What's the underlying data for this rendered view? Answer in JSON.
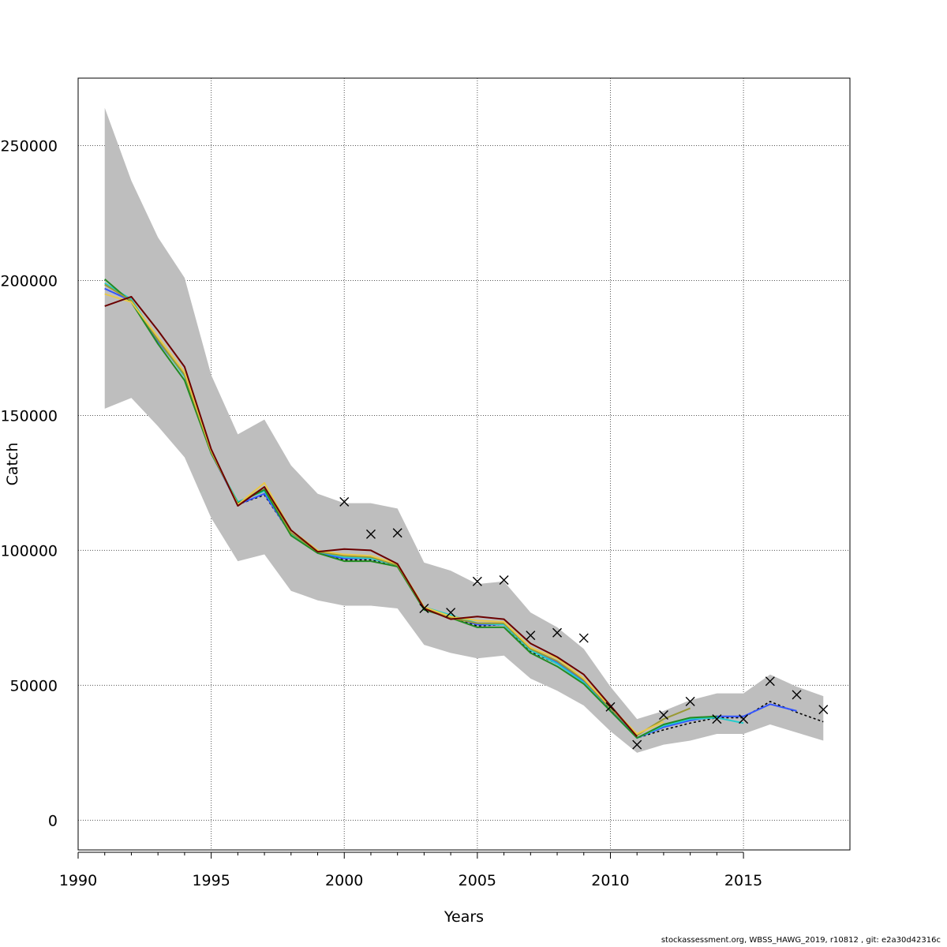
{
  "chart_data": {
    "type": "line",
    "xlabel": "Years",
    "ylabel": "Catch",
    "xlim": [
      1990,
      2019
    ],
    "ylim": [
      -11000,
      275000
    ],
    "x_ticks": [
      1990,
      1995,
      2000,
      2005,
      2010,
      2015
    ],
    "y_ticks": [
      0,
      50000,
      100000,
      150000,
      200000,
      250000
    ],
    "y_tick_labels": [
      "0",
      "50000",
      "100000",
      "150000",
      "200000",
      "250000"
    ],
    "grid": true,
    "confidence_band": {
      "color": "#bebebe",
      "x": [
        1991,
        1992,
        1993,
        1994,
        1995,
        1996,
        1997,
        1998,
        1999,
        2000,
        2001,
        2002,
        2003,
        2004,
        2005,
        2006,
        2007,
        2008,
        2009,
        2010,
        2011,
        2012,
        2013,
        2014,
        2015,
        2016,
        2017,
        2018
      ],
      "upper": [
        264000,
        237000,
        216000,
        201000,
        165000,
        143000,
        148500,
        131500,
        121000,
        117500,
        117500,
        115500,
        95500,
        92500,
        87500,
        88500,
        77000,
        71500,
        63500,
        49500,
        37500,
        40500,
        44500,
        47000,
        47000,
        54000,
        49500,
        46000
      ],
      "lower": [
        152500,
        156500,
        146000,
        134500,
        112000,
        96000,
        98500,
        85000,
        81500,
        79500,
        79500,
        78500,
        65000,
        62000,
        60000,
        61000,
        52500,
        48000,
        42500,
        33000,
        25000,
        28000,
        29500,
        32000,
        32000,
        35500,
        32500,
        29500
      ]
    },
    "series": [
      {
        "color": "#000000",
        "dashed": true,
        "x": [
          1991,
          1992,
          1993,
          1994,
          1995,
          1996,
          1997,
          1998,
          1999,
          2000,
          2001,
          2002,
          2003,
          2004,
          2005,
          2006,
          2007,
          2008,
          2009,
          2010,
          2011,
          2012,
          2013,
          2014,
          2015,
          2016,
          2017,
          2018
        ],
        "values": [
          197000,
          192500,
          177500,
          165000,
          136000,
          117000,
          120500,
          106000,
          99000,
          96500,
          96500,
          94000,
          78000,
          75000,
          72000,
          72500,
          62500,
          58000,
          51000,
          41000,
          30500,
          33500,
          36000,
          38000,
          38000,
          44000,
          40000,
          36500
        ]
      },
      {
        "color": "#3355ff",
        "x": [
          1991,
          1992,
          1993,
          1994,
          1995,
          1996,
          1997,
          1998,
          1999,
          2000,
          2001,
          2002,
          2003,
          2004,
          2005,
          2006,
          2007,
          2008,
          2009,
          2010,
          2011,
          2012,
          2013,
          2014,
          2015,
          2016,
          2017
        ],
        "values": [
          197000,
          192500,
          177500,
          165000,
          136000,
          117000,
          121000,
          106000,
          99000,
          97000,
          97000,
          94500,
          78500,
          75500,
          72500,
          72500,
          63000,
          58500,
          51500,
          41500,
          30500,
          34500,
          37000,
          38500,
          38500,
          43000,
          40500
        ]
      },
      {
        "color": "#22cccc",
        "x": [
          1991,
          1992,
          1993,
          1994,
          1995,
          1996,
          1997,
          1998,
          1999,
          2000,
          2001,
          2002,
          2003,
          2004,
          2005,
          2006,
          2007,
          2008,
          2009,
          2010,
          2011,
          2012,
          2013,
          2014,
          2015
        ],
        "values": [
          199000,
          193000,
          178000,
          164500,
          136000,
          118000,
          122000,
          106000,
          99500,
          97500,
          97000,
          94500,
          79000,
          76000,
          73000,
          72500,
          63000,
          58000,
          51000,
          40500,
          30500,
          35000,
          37500,
          38000,
          36000
        ]
      },
      {
        "color": "#228b22",
        "x": [
          1991,
          1992,
          1993,
          1994,
          1995,
          1996,
          1997,
          1998,
          1999,
          2000,
          2001,
          2002,
          2003,
          2004,
          2005,
          2006,
          2007,
          2008,
          2009,
          2010,
          2011,
          2012,
          2013,
          2014
        ],
        "values": [
          200500,
          192000,
          176500,
          163000,
          136000,
          117500,
          122500,
          105500,
          99000,
          96000,
          96000,
          94000,
          78000,
          75000,
          71500,
          71500,
          62000,
          57000,
          50500,
          40500,
          30500,
          35500,
          38000,
          38500
        ]
      },
      {
        "color": "#999933",
        "x": [
          1991,
          1992,
          1993,
          1994,
          1995,
          1996,
          1997,
          1998,
          1999,
          2000,
          2001,
          2002,
          2003,
          2004,
          2005,
          2006,
          2007,
          2008,
          2009,
          2010,
          2011,
          2012,
          2013
        ],
        "values": [
          198500,
          192500,
          178000,
          165000,
          136500,
          117000,
          123500,
          106500,
          99500,
          98000,
          97500,
          94500,
          78500,
          75000,
          73000,
          73000,
          63500,
          59000,
          52000,
          41500,
          31500,
          37500,
          41500
        ]
      },
      {
        "color": "#e8c84a",
        "x": [
          1991,
          1992,
          1993,
          1994,
          1995,
          1996,
          1997,
          1998,
          1999,
          2000,
          2001,
          2002,
          2003,
          2004,
          2005,
          2006,
          2007,
          2008,
          2009,
          2010,
          2011,
          2012
        ],
        "values": [
          195000,
          192000,
          179000,
          166000,
          137000,
          117000,
          125000,
          107500,
          100000,
          98500,
          98000,
          95000,
          79000,
          75500,
          74000,
          73500,
          64000,
          60000,
          52500,
          42000,
          32000,
          36500
        ]
      },
      {
        "color": "#6b0000",
        "x": [
          1991,
          1992,
          1993,
          1994,
          1995,
          1996,
          1997,
          1998,
          1999,
          2000,
          2001,
          2002,
          2003,
          2004,
          2005,
          2006,
          2007,
          2008,
          2009,
          2010,
          2011
        ],
        "values": [
          190500,
          194000,
          181500,
          168000,
          137500,
          116500,
          123500,
          107500,
          99500,
          100500,
          100000,
          95000,
          78500,
          74500,
          75500,
          74500,
          65500,
          60500,
          54000,
          42500,
          31000
        ]
      }
    ],
    "observed": {
      "marker": "x",
      "x": [
        2000,
        2001,
        2002,
        2003,
        2004,
        2005,
        2006,
        2007,
        2008,
        2009,
        2010,
        2011,
        2012,
        2013,
        2014,
        2015,
        2016,
        2017,
        2018
      ],
      "values": [
        118000,
        106000,
        106500,
        78500,
        77000,
        88500,
        89000,
        68500,
        69500,
        67500,
        42000,
        28000,
        39000,
        44000,
        37500,
        37500,
        51500,
        46500,
        41000
      ]
    }
  },
  "footer_text": "stockassessment.org, WBSS_HAWG_2019, r10812 , git: e2a30d42316c"
}
